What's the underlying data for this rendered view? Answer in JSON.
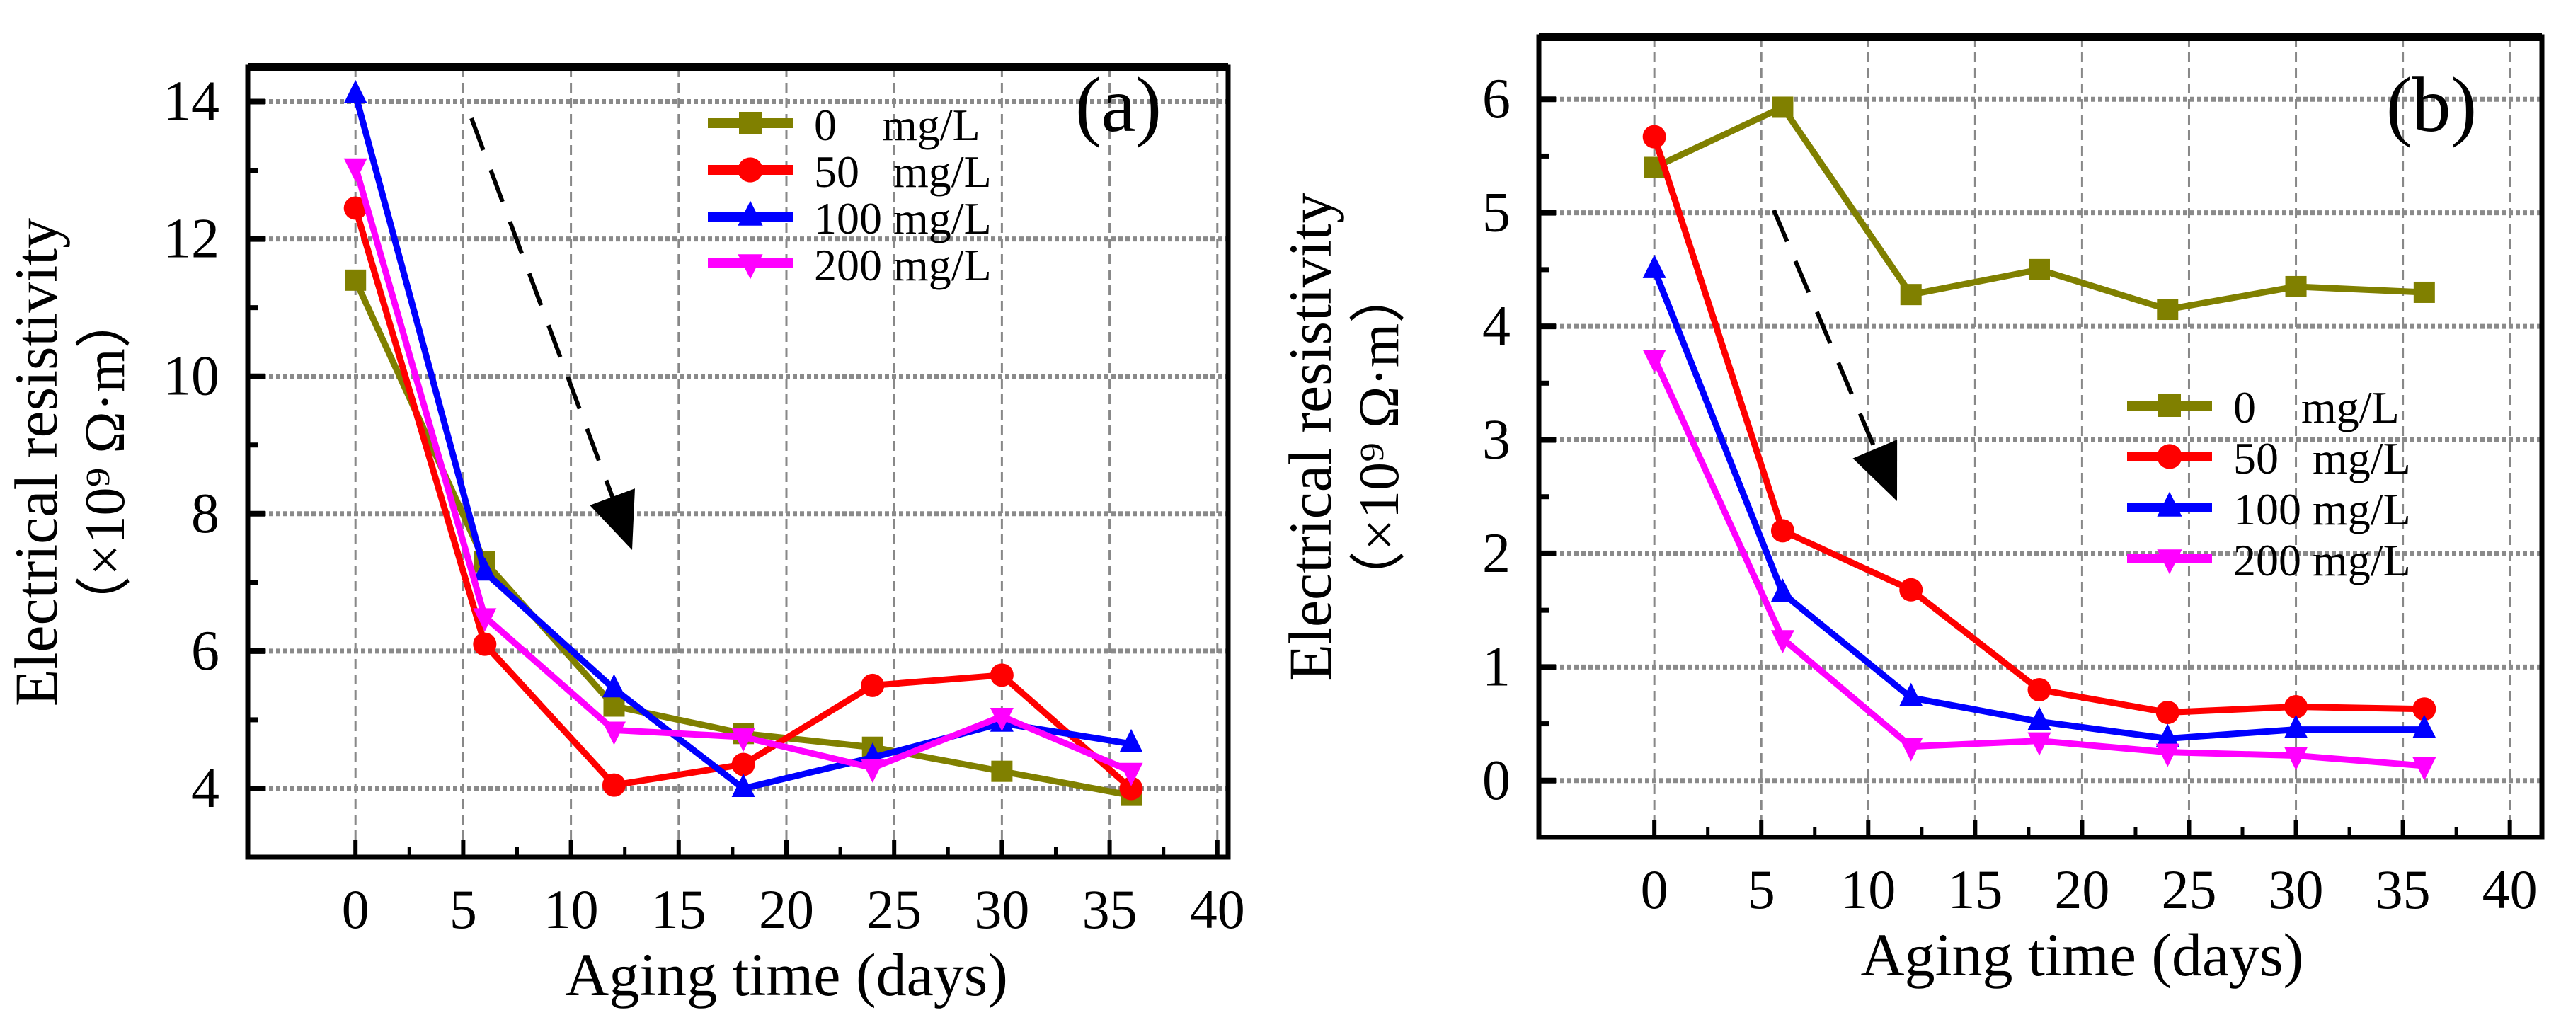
{
  "chart_data": [
    {
      "type": "line",
      "panel_label": "(a)",
      "xlabel": "Aging time (days)",
      "ylabel_line1": "Electrical resistivity",
      "ylabel_line2": "（×10⁹ Ω·m）",
      "xlim": [
        -5,
        40.5
      ],
      "ylim": [
        3,
        14.5
      ],
      "xticks": [
        0,
        5,
        10,
        15,
        20,
        25,
        30,
        35,
        40
      ],
      "yticks": [
        4,
        6,
        8,
        10,
        12,
        14
      ],
      "grid": true,
      "legend_position": "upper-right",
      "x": [
        0,
        6,
        12,
        18,
        24,
        30,
        36
      ],
      "series": [
        {
          "name": "0    mg/L",
          "color": "#808000",
          "marker": "square",
          "values": [
            11.4,
            7.3,
            5.2,
            4.8,
            4.6,
            4.25,
            3.9
          ]
        },
        {
          "name": "50   mg/L",
          "color": "#ff0000",
          "marker": "circle",
          "values": [
            12.45,
            6.1,
            4.05,
            4.35,
            5.5,
            5.65,
            4.0
          ]
        },
        {
          "name": "100 mg/L",
          "color": "#0000ff",
          "marker": "triangle-up",
          "values": [
            14.1,
            7.15,
            5.45,
            4.0,
            4.45,
            4.95,
            4.65
          ]
        },
        {
          "name": "200 mg/L",
          "color": "#ff00ff",
          "marker": "triangle-down",
          "values": [
            13.05,
            6.5,
            4.85,
            4.75,
            4.3,
            5.05,
            4.25
          ]
        }
      ]
    },
    {
      "type": "line",
      "panel_label": "(b)",
      "xlabel": "Aging time (days)",
      "ylabel_line1": "Electrical resistivity",
      "ylabel_line2": "（×10⁹ Ω·m）",
      "xlim": [
        -5.4,
        41.5
      ],
      "ylim": [
        -0.5,
        6.55
      ],
      "xticks": [
        0,
        5,
        10,
        15,
        20,
        25,
        30,
        35,
        40
      ],
      "yticks": [
        0,
        1,
        2,
        3,
        4,
        5,
        6
      ],
      "grid": true,
      "legend_position": "center-right",
      "x": [
        0,
        6,
        12,
        18,
        24,
        30,
        36
      ],
      "series": [
        {
          "name": "0    mg/L",
          "color": "#808000",
          "marker": "square",
          "values": [
            5.4,
            5.93,
            4.28,
            4.5,
            4.15,
            4.35,
            4.3
          ]
        },
        {
          "name": "50   mg/L",
          "color": "#ff0000",
          "marker": "circle",
          "values": [
            5.67,
            2.2,
            1.68,
            0.8,
            0.6,
            0.65,
            0.63
          ]
        },
        {
          "name": "100 mg/L",
          "color": "#0000ff",
          "marker": "triangle-up",
          "values": [
            4.5,
            1.65,
            0.73,
            0.52,
            0.37,
            0.45,
            0.45
          ]
        },
        {
          "name": "200 mg/L",
          "color": "#ff00ff",
          "marker": "triangle-down",
          "values": [
            3.72,
            1.25,
            0.3,
            0.35,
            0.25,
            0.22,
            0.13
          ]
        }
      ]
    }
  ]
}
